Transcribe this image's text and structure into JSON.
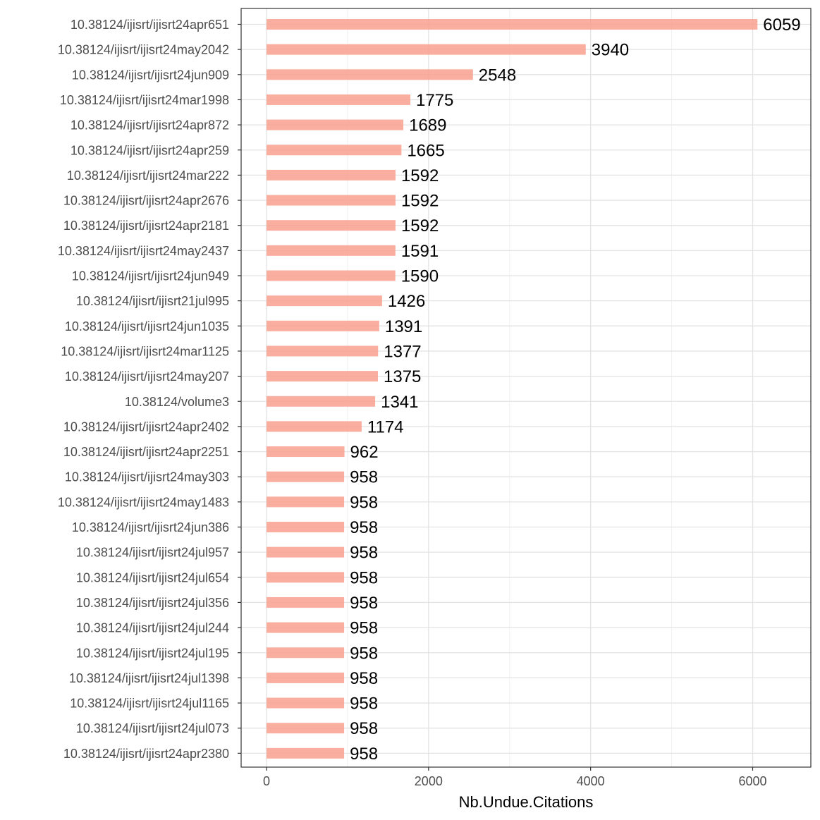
{
  "chart_data": {
    "type": "bar",
    "orientation": "horizontal",
    "xlabel": "Nb.Undue.Citations",
    "ylabel": "",
    "title": "",
    "xlim": [
      -300,
      6700
    ],
    "xticks": [
      0,
      2000,
      4000,
      6000
    ],
    "grid": true,
    "bar_color": "#f8a08e",
    "categories": [
      "10.38124/ijisrt/ijisrt24apr651",
      "10.38124/ijisrt/ijisrt24may2042",
      "10.38124/ijisrt/ijisrt24jun909",
      "10.38124/ijisrt/ijisrt24mar1998",
      "10.38124/ijisrt/ijisrt24apr872",
      "10.38124/ijisrt/ijisrt24apr259",
      "10.38124/ijisrt/ijisrt24mar222",
      "10.38124/ijisrt/ijisrt24apr2676",
      "10.38124/ijisrt/ijisrt24apr2181",
      "10.38124/ijisrt/ijisrt24may2437",
      "10.38124/ijisrt/ijisrt24jun949",
      "10.38124/ijisrt/ijisrt21jul995",
      "10.38124/ijisrt/ijisrt24jun1035",
      "10.38124/ijisrt/ijisrt24mar1125",
      "10.38124/ijisrt/ijisrt24may207",
      "10.38124/volume3",
      "10.38124/ijisrt/ijisrt24apr2402",
      "10.38124/ijisrt/ijisrt24apr2251",
      "10.38124/ijisrt/ijisrt24may303",
      "10.38124/ijisrt/ijisrt24may1483",
      "10.38124/ijisrt/ijisrt24jun386",
      "10.38124/ijisrt/ijisrt24jul957",
      "10.38124/ijisrt/ijisrt24jul654",
      "10.38124/ijisrt/ijisrt24jul356",
      "10.38124/ijisrt/ijisrt24jul244",
      "10.38124/ijisrt/ijisrt24jul195",
      "10.38124/ijisrt/ijisrt24jul1398",
      "10.38124/ijisrt/ijisrt24jul1165",
      "10.38124/ijisrt/ijisrt24jul073",
      "10.38124/ijisrt/ijisrt24apr2380"
    ],
    "values": [
      6059,
      3940,
      2548,
      1775,
      1689,
      1665,
      1592,
      1592,
      1592,
      1591,
      1590,
      1426,
      1391,
      1377,
      1375,
      1341,
      1174,
      962,
      958,
      958,
      958,
      958,
      958,
      958,
      958,
      958,
      958,
      958,
      958,
      958
    ]
  }
}
